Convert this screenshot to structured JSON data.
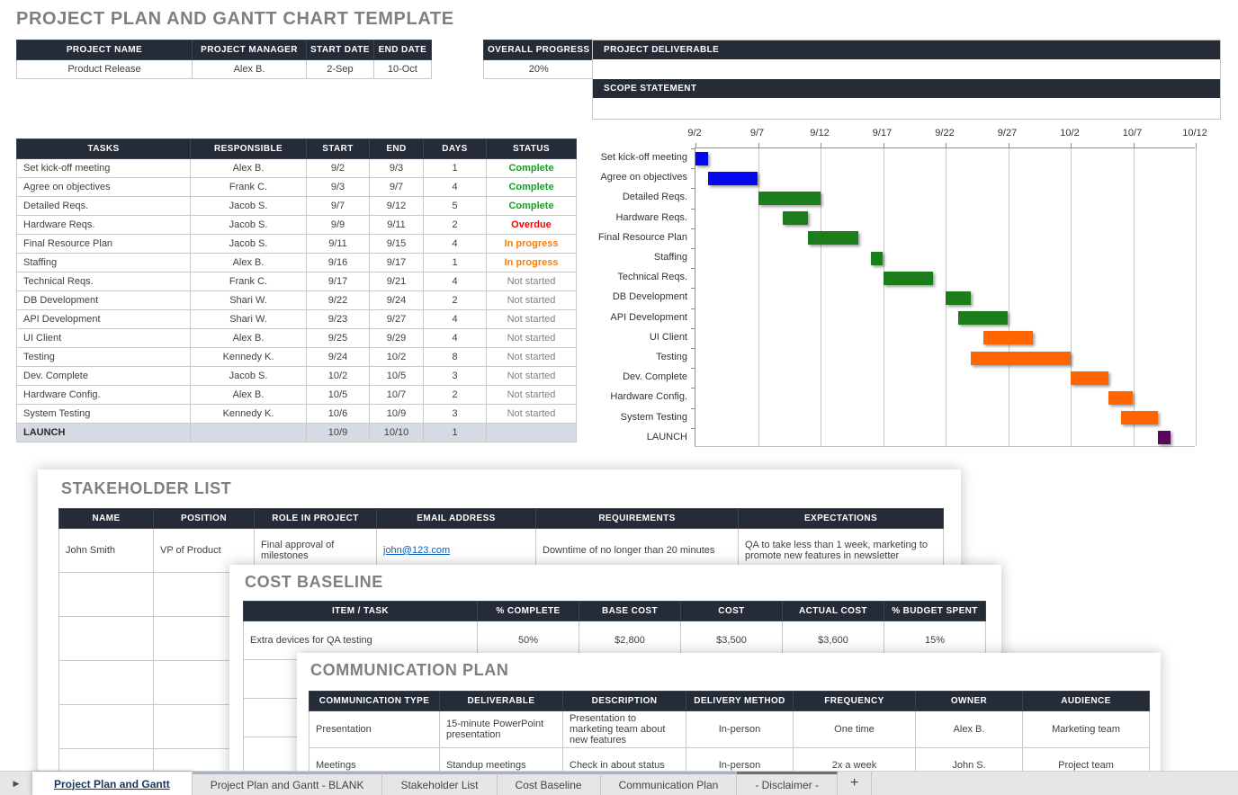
{
  "page": {
    "title": "PROJECT PLAN AND GANTT CHART TEMPLATE"
  },
  "project_info": {
    "headers": [
      "PROJECT NAME",
      "PROJECT MANAGER",
      "START DATE",
      "END DATE"
    ],
    "values": [
      "Product Release",
      "Alex B.",
      "2-Sep",
      "10-Oct"
    ]
  },
  "overall_progress": {
    "label": "OVERALL PROGRESS",
    "value": "20%"
  },
  "deliverable": {
    "label": "PROJECT DELIVERABLE",
    "value": ""
  },
  "scope": {
    "label": "SCOPE STATEMENT",
    "value": ""
  },
  "task_table": {
    "headers": [
      "TASKS",
      "RESPONSIBLE",
      "START",
      "END",
      "DAYS",
      "STATUS"
    ],
    "rows": [
      [
        "Set kick-off meeting",
        "Alex B.",
        "9/2",
        "9/3",
        "1",
        "Complete"
      ],
      [
        "Agree on objectives",
        "Frank C.",
        "9/3",
        "9/7",
        "4",
        "Complete"
      ],
      [
        "Detailed Reqs.",
        "Jacob S.",
        "9/7",
        "9/12",
        "5",
        "Complete"
      ],
      [
        "Hardware Reqs.",
        "Jacob S.",
        "9/9",
        "9/11",
        "2",
        "Overdue"
      ],
      [
        "Final Resource Plan",
        "Jacob S.",
        "9/11",
        "9/15",
        "4",
        "In progress"
      ],
      [
        "Staffing",
        "Alex B.",
        "9/16",
        "9/17",
        "1",
        "In progress"
      ],
      [
        "Technical Reqs.",
        "Frank C.",
        "9/17",
        "9/21",
        "4",
        "Not started"
      ],
      [
        "DB Development",
        "Shari W.",
        "9/22",
        "9/24",
        "2",
        "Not started"
      ],
      [
        "API Development",
        "Shari W.",
        "9/23",
        "9/27",
        "4",
        "Not started"
      ],
      [
        "UI Client",
        "Alex B.",
        "9/25",
        "9/29",
        "4",
        "Not started"
      ],
      [
        "Testing",
        "Kennedy K.",
        "9/24",
        "10/2",
        "8",
        "Not started"
      ],
      [
        "Dev. Complete",
        "Jacob S.",
        "10/2",
        "10/5",
        "3",
        "Not started"
      ],
      [
        "Hardware Config.",
        "Alex B.",
        "10/5",
        "10/7",
        "2",
        "Not started"
      ],
      [
        "System Testing",
        "Kennedy K.",
        "10/6",
        "10/9",
        "3",
        "Not started"
      ],
      [
        "LAUNCH",
        "",
        "10/9",
        "10/10",
        "1",
        ""
      ]
    ]
  },
  "chart_data": {
    "type": "gantt",
    "title": "",
    "x_ticks": [
      "9/2",
      "9/7",
      "9/12",
      "9/17",
      "9/22",
      "9/27",
      "10/2",
      "10/7",
      "10/12"
    ],
    "axis_origin": "9/2",
    "total_days": 40,
    "grid": true,
    "rows": [
      {
        "task": "Set kick-off meeting",
        "start": "9/2",
        "end": "9/3",
        "start_offset": 0,
        "end_offset": 1,
        "color": "blue"
      },
      {
        "task": "Agree on objectives",
        "start": "9/3",
        "end": "9/7",
        "start_offset": 1,
        "end_offset": 5,
        "color": "blue"
      },
      {
        "task": "Detailed Reqs.",
        "start": "9/7",
        "end": "9/12",
        "start_offset": 5,
        "end_offset": 10,
        "color": "green"
      },
      {
        "task": "Hardware Reqs.",
        "start": "9/9",
        "end": "9/11",
        "start_offset": 7,
        "end_offset": 9,
        "color": "green"
      },
      {
        "task": "Final Resource Plan",
        "start": "9/11",
        "end": "9/15",
        "start_offset": 9,
        "end_offset": 13,
        "color": "green"
      },
      {
        "task": "Staffing",
        "start": "9/16",
        "end": "9/17",
        "start_offset": 14,
        "end_offset": 15,
        "color": "green"
      },
      {
        "task": "Technical Reqs.",
        "start": "9/17",
        "end": "9/21",
        "start_offset": 15,
        "end_offset": 19,
        "color": "green"
      },
      {
        "task": "DB Development",
        "start": "9/22",
        "end": "9/24",
        "start_offset": 20,
        "end_offset": 22,
        "color": "green"
      },
      {
        "task": "API Development",
        "start": "9/23",
        "end": "9/27",
        "start_offset": 21,
        "end_offset": 25,
        "color": "green"
      },
      {
        "task": "UI Client",
        "start": "9/25",
        "end": "9/29",
        "start_offset": 23,
        "end_offset": 27,
        "color": "orange"
      },
      {
        "task": "Testing",
        "start": "9/24",
        "end": "10/2",
        "start_offset": 22,
        "end_offset": 30,
        "color": "orange"
      },
      {
        "task": "Dev. Complete",
        "start": "10/2",
        "end": "10/5",
        "start_offset": 30,
        "end_offset": 33,
        "color": "orange"
      },
      {
        "task": "Hardware Config.",
        "start": "10/5",
        "end": "10/7",
        "start_offset": 33,
        "end_offset": 35,
        "color": "orange"
      },
      {
        "task": "System Testing",
        "start": "10/6",
        "end": "10/9",
        "start_offset": 34,
        "end_offset": 37,
        "color": "orange"
      },
      {
        "task": "LAUNCH",
        "start": "10/9",
        "end": "10/10",
        "start_offset": 37,
        "end_offset": 38,
        "color": "purple"
      }
    ]
  },
  "stakeholder": {
    "title": "STAKEHOLDER LIST",
    "headers": [
      "NAME",
      "POSITION",
      "ROLE IN PROJECT",
      "EMAIL ADDRESS",
      "REQUIREMENTS",
      "EXPECTATIONS"
    ],
    "rows": [
      [
        "John Smith",
        "VP of Product",
        "Final approval of milestones",
        "john@123.com",
        "Downtime of no longer than 20 minutes",
        "QA to take less than 1 week, marketing to promote new features in newsletter"
      ]
    ]
  },
  "cost": {
    "title": "COST BASELINE",
    "headers": [
      "ITEM / TASK",
      "% COMPLETE",
      "BASE COST",
      "COST",
      "ACTUAL COST",
      "% BUDGET SPENT"
    ],
    "rows": [
      [
        "Extra devices for QA testing",
        "50%",
        "$2,800",
        "$3,500",
        "$3,600",
        "15%"
      ]
    ]
  },
  "communication": {
    "title": "COMMUNICATION PLAN",
    "headers": [
      "COMMUNICATION TYPE",
      "DELIVERABLE",
      "DESCRIPTION",
      "DELIVERY METHOD",
      "FREQUENCY",
      "OWNER",
      "AUDIENCE"
    ],
    "rows": [
      [
        "Presentation",
        "15-minute PowerPoint presentation",
        "Presentation to marketing team about new features",
        "In-person",
        "One time",
        "Alex B.",
        "Marketing team"
      ],
      [
        "Meetings",
        "Standup meetings",
        "Check in about status",
        "In-person",
        "2x a week",
        "John S.",
        "Project team"
      ]
    ]
  },
  "tab_bar": {
    "scroll_icon": "▶",
    "add_label": "+",
    "tabs": [
      {
        "label": "Project Plan and Gantt",
        "active": true
      },
      {
        "label": "Project Plan and Gantt - BLANK",
        "active": false
      },
      {
        "label": "Stakeholder List",
        "active": false
      },
      {
        "label": "Cost Baseline",
        "active": false
      },
      {
        "label": "Communication Plan",
        "active": false
      },
      {
        "label": "- Disclaimer -",
        "active": false
      }
    ]
  },
  "colors": {
    "header_bg": "#252C38",
    "title_gray": "#7F7F7F",
    "launch_row_bg": "#D5DAE3",
    "link": "#0563C1",
    "active_tab_text": "#17375E",
    "status": {
      "Complete": "#14A01E",
      "Overdue": "#FE0000",
      "In progress": "#FF7D01",
      "Not started": "#808080"
    },
    "bars": {
      "blue": "#0508EE",
      "green": "#1B7E1A",
      "orange": "#FF6600",
      "purple": "#570858"
    }
  }
}
